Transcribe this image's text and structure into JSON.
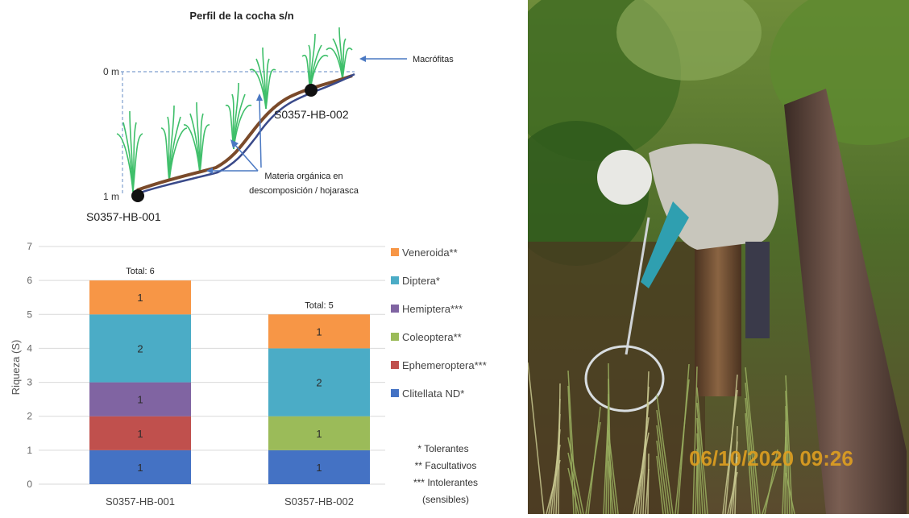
{
  "profile": {
    "title": "Perfil de la cocha s/n",
    "depth_top": "0 m",
    "depth_bottom": "1 m",
    "label_macrofitas": "Macrófitas",
    "label_materia_line1": "Materia orgánica en",
    "label_materia_line2": "descomposición / hojarasca",
    "station_1": "S0357-HB-001",
    "station_2": "S0357-HB-002"
  },
  "chart_data": {
    "type": "bar",
    "stacked": true,
    "ylabel": "Riqueza (S)",
    "ylim": [
      0,
      7
    ],
    "yticks": [
      "0",
      "1",
      "2",
      "3",
      "4",
      "5",
      "6",
      "7"
    ],
    "categories": [
      "S0357-HB-001",
      "S0357-HB-002"
    ],
    "totals_labels": [
      "Total: 6",
      "Total: 5"
    ],
    "series": [
      {
        "name": "Clitellata ND*",
        "color": "#4472c4",
        "values": [
          1,
          1
        ]
      },
      {
        "name": "Ephemeroptera***",
        "color": "#c0504d",
        "values": [
          1,
          0
        ]
      },
      {
        "name": "Coleoptera**",
        "color": "#9bbb59",
        "values": [
          0,
          1
        ]
      },
      {
        "name": "Hemiptera***",
        "color": "#8064a2",
        "values": [
          1,
          0
        ]
      },
      {
        "name": "Diptera*",
        "color": "#4bacc6",
        "values": [
          2,
          2
        ]
      },
      {
        "name": "Veneroida**",
        "color": "#f79646",
        "values": [
          1,
          1
        ]
      }
    ],
    "legend_order": [
      "Veneroida**",
      "Diptera*",
      "Hemiptera***",
      "Coleoptera**",
      "Ephemeroptera***",
      "Clitellata ND*"
    ],
    "legend_position": "right",
    "notes": [
      "* Tolerantes",
      "** Facultativos",
      "*** Intolerantes",
      "(sensibles)"
    ]
  },
  "photo": {
    "timestamp": "06/10/2020 09:26"
  }
}
